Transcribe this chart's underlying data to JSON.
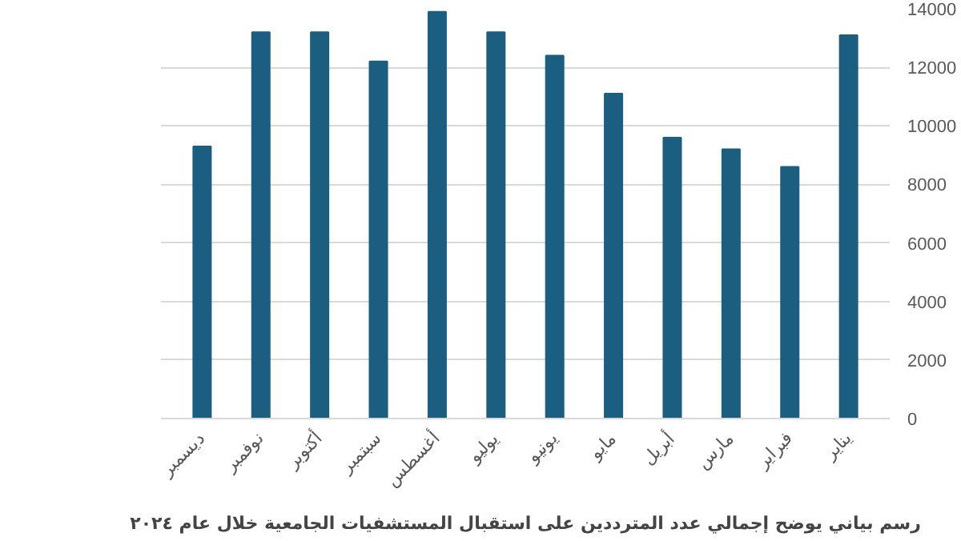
{
  "chart_data": {
    "type": "bar",
    "title": "رسم بياني يوضح إجمالي عدد المترددين على استقبال المستشفيات الجامعية خلال عام ٢٠٢٤",
    "categories": [
      "ديسمبر",
      "نوفمبر",
      "أكتوبر",
      "سبتمبر",
      "أغسطس",
      "يوليو",
      "يونيو",
      "مايو",
      "أبريل",
      "مارس",
      "فبراير",
      "يناير"
    ],
    "values": [
      9300,
      13200,
      13200,
      12200,
      13900,
      13200,
      12400,
      11100,
      9600,
      9200,
      8600,
      13100
    ],
    "color": "#1b5e80",
    "ylim": [
      0,
      14000
    ],
    "yticks": [
      0,
      2000,
      4000,
      6000,
      8000,
      10000,
      12000,
      14000
    ],
    "grid": "y"
  }
}
